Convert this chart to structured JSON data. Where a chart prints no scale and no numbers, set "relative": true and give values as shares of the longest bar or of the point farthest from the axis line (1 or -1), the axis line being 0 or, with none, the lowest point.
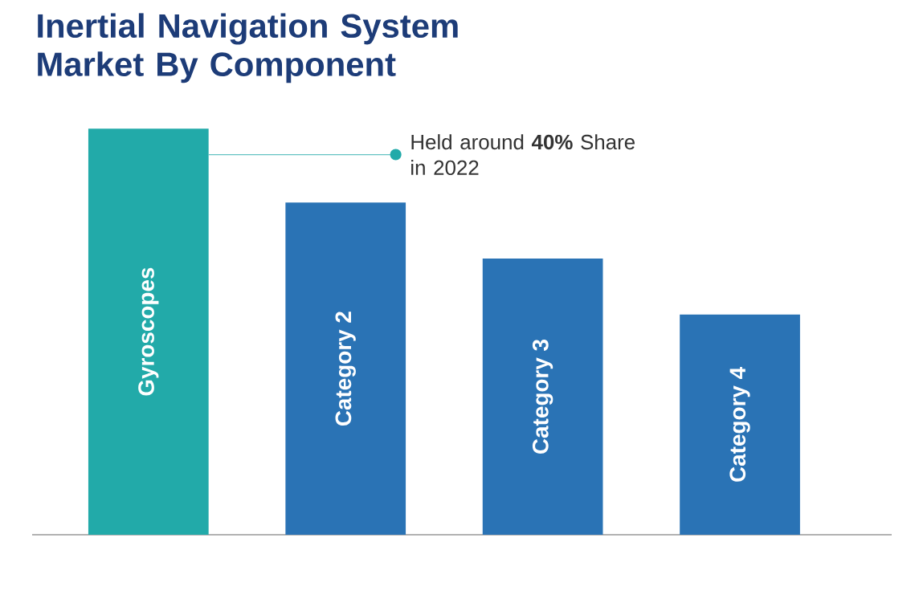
{
  "chart_data": {
    "type": "bar",
    "title": "Inertial Navigation System Market By Component",
    "categories": [
      "Gyroscopes",
      "Category 2",
      "Category 3",
      "Category 4"
    ],
    "values": [
      1,
      0.818,
      0.68,
      0.542
    ],
    "colors": [
      "#22aaa9",
      "#2a73b5",
      "#2a73b5",
      "#2a73b5"
    ],
    "relative": true,
    "annotations": [
      "Held around **40%** Share in 2022"
    ]
  }
}
